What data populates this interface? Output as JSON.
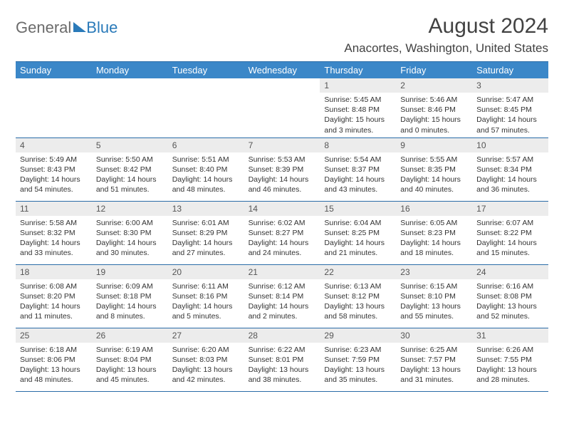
{
  "logo": {
    "part1": "General",
    "part2": "Blue"
  },
  "title": {
    "month": "August 2024",
    "location": "Anacortes, Washington, United States"
  },
  "colors": {
    "header_bg": "#3b87c8",
    "border": "#2a6ca8",
    "numrow_bg": "#ececec",
    "logo_gray": "#6b6b6b",
    "logo_blue": "#2a7ab9",
    "text": "#333333"
  },
  "day_headers": [
    "Sunday",
    "Monday",
    "Tuesday",
    "Wednesday",
    "Thursday",
    "Friday",
    "Saturday"
  ],
  "weeks": [
    [
      {
        "n": "",
        "sr": "",
        "ss": "",
        "dl": ""
      },
      {
        "n": "",
        "sr": "",
        "ss": "",
        "dl": ""
      },
      {
        "n": "",
        "sr": "",
        "ss": "",
        "dl": ""
      },
      {
        "n": "",
        "sr": "",
        "ss": "",
        "dl": ""
      },
      {
        "n": "1",
        "sr": "Sunrise: 5:45 AM",
        "ss": "Sunset: 8:48 PM",
        "dl": "Daylight: 15 hours and 3 minutes."
      },
      {
        "n": "2",
        "sr": "Sunrise: 5:46 AM",
        "ss": "Sunset: 8:46 PM",
        "dl": "Daylight: 15 hours and 0 minutes."
      },
      {
        "n": "3",
        "sr": "Sunrise: 5:47 AM",
        "ss": "Sunset: 8:45 PM",
        "dl": "Daylight: 14 hours and 57 minutes."
      }
    ],
    [
      {
        "n": "4",
        "sr": "Sunrise: 5:49 AM",
        "ss": "Sunset: 8:43 PM",
        "dl": "Daylight: 14 hours and 54 minutes."
      },
      {
        "n": "5",
        "sr": "Sunrise: 5:50 AM",
        "ss": "Sunset: 8:42 PM",
        "dl": "Daylight: 14 hours and 51 minutes."
      },
      {
        "n": "6",
        "sr": "Sunrise: 5:51 AM",
        "ss": "Sunset: 8:40 PM",
        "dl": "Daylight: 14 hours and 48 minutes."
      },
      {
        "n": "7",
        "sr": "Sunrise: 5:53 AM",
        "ss": "Sunset: 8:39 PM",
        "dl": "Daylight: 14 hours and 46 minutes."
      },
      {
        "n": "8",
        "sr": "Sunrise: 5:54 AM",
        "ss": "Sunset: 8:37 PM",
        "dl": "Daylight: 14 hours and 43 minutes."
      },
      {
        "n": "9",
        "sr": "Sunrise: 5:55 AM",
        "ss": "Sunset: 8:35 PM",
        "dl": "Daylight: 14 hours and 40 minutes."
      },
      {
        "n": "10",
        "sr": "Sunrise: 5:57 AM",
        "ss": "Sunset: 8:34 PM",
        "dl": "Daylight: 14 hours and 36 minutes."
      }
    ],
    [
      {
        "n": "11",
        "sr": "Sunrise: 5:58 AM",
        "ss": "Sunset: 8:32 PM",
        "dl": "Daylight: 14 hours and 33 minutes."
      },
      {
        "n": "12",
        "sr": "Sunrise: 6:00 AM",
        "ss": "Sunset: 8:30 PM",
        "dl": "Daylight: 14 hours and 30 minutes."
      },
      {
        "n": "13",
        "sr": "Sunrise: 6:01 AM",
        "ss": "Sunset: 8:29 PM",
        "dl": "Daylight: 14 hours and 27 minutes."
      },
      {
        "n": "14",
        "sr": "Sunrise: 6:02 AM",
        "ss": "Sunset: 8:27 PM",
        "dl": "Daylight: 14 hours and 24 minutes."
      },
      {
        "n": "15",
        "sr": "Sunrise: 6:04 AM",
        "ss": "Sunset: 8:25 PM",
        "dl": "Daylight: 14 hours and 21 minutes."
      },
      {
        "n": "16",
        "sr": "Sunrise: 6:05 AM",
        "ss": "Sunset: 8:23 PM",
        "dl": "Daylight: 14 hours and 18 minutes."
      },
      {
        "n": "17",
        "sr": "Sunrise: 6:07 AM",
        "ss": "Sunset: 8:22 PM",
        "dl": "Daylight: 14 hours and 15 minutes."
      }
    ],
    [
      {
        "n": "18",
        "sr": "Sunrise: 6:08 AM",
        "ss": "Sunset: 8:20 PM",
        "dl": "Daylight: 14 hours and 11 minutes."
      },
      {
        "n": "19",
        "sr": "Sunrise: 6:09 AM",
        "ss": "Sunset: 8:18 PM",
        "dl": "Daylight: 14 hours and 8 minutes."
      },
      {
        "n": "20",
        "sr": "Sunrise: 6:11 AM",
        "ss": "Sunset: 8:16 PM",
        "dl": "Daylight: 14 hours and 5 minutes."
      },
      {
        "n": "21",
        "sr": "Sunrise: 6:12 AM",
        "ss": "Sunset: 8:14 PM",
        "dl": "Daylight: 14 hours and 2 minutes."
      },
      {
        "n": "22",
        "sr": "Sunrise: 6:13 AM",
        "ss": "Sunset: 8:12 PM",
        "dl": "Daylight: 13 hours and 58 minutes."
      },
      {
        "n": "23",
        "sr": "Sunrise: 6:15 AM",
        "ss": "Sunset: 8:10 PM",
        "dl": "Daylight: 13 hours and 55 minutes."
      },
      {
        "n": "24",
        "sr": "Sunrise: 6:16 AM",
        "ss": "Sunset: 8:08 PM",
        "dl": "Daylight: 13 hours and 52 minutes."
      }
    ],
    [
      {
        "n": "25",
        "sr": "Sunrise: 6:18 AM",
        "ss": "Sunset: 8:06 PM",
        "dl": "Daylight: 13 hours and 48 minutes."
      },
      {
        "n": "26",
        "sr": "Sunrise: 6:19 AM",
        "ss": "Sunset: 8:04 PM",
        "dl": "Daylight: 13 hours and 45 minutes."
      },
      {
        "n": "27",
        "sr": "Sunrise: 6:20 AM",
        "ss": "Sunset: 8:03 PM",
        "dl": "Daylight: 13 hours and 42 minutes."
      },
      {
        "n": "28",
        "sr": "Sunrise: 6:22 AM",
        "ss": "Sunset: 8:01 PM",
        "dl": "Daylight: 13 hours and 38 minutes."
      },
      {
        "n": "29",
        "sr": "Sunrise: 6:23 AM",
        "ss": "Sunset: 7:59 PM",
        "dl": "Daylight: 13 hours and 35 minutes."
      },
      {
        "n": "30",
        "sr": "Sunrise: 6:25 AM",
        "ss": "Sunset: 7:57 PM",
        "dl": "Daylight: 13 hours and 31 minutes."
      },
      {
        "n": "31",
        "sr": "Sunrise: 6:26 AM",
        "ss": "Sunset: 7:55 PM",
        "dl": "Daylight: 13 hours and 28 minutes."
      }
    ]
  ]
}
